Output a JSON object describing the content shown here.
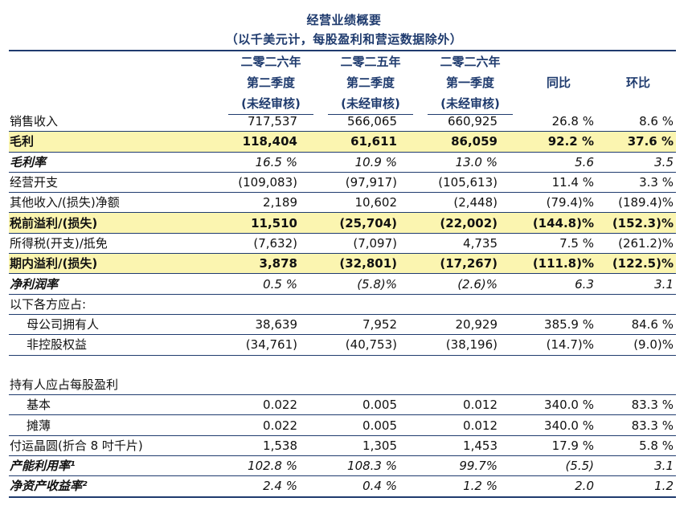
{
  "title": "经营业绩概要",
  "subtitle": "（以千美元计，每股盈利和营运数据除外）",
  "columns": [
    {
      "line1": "二零二六年",
      "line2": "第二季度",
      "line3": "(未经审核)"
    },
    {
      "line1": "二零二五年",
      "line2": "第二季度",
      "line3": "(未经审核)"
    },
    {
      "line1": "二零二六年",
      "line2": "第一季度",
      "line3": "(未经审核)"
    },
    {
      "label": "同比"
    },
    {
      "label": "环比"
    }
  ],
  "rows": [
    {
      "label": "销售收入",
      "values": [
        "717,537",
        "566,065",
        "660,925",
        "26.8 %",
        "8.6 %"
      ]
    },
    {
      "label": "毛利",
      "values": [
        "118,404",
        "61,611",
        "86,059",
        "92.2 %",
        "37.6 %"
      ]
    },
    {
      "label": "毛利率",
      "values": [
        "16.5 %",
        "10.9 %",
        "13.0 %",
        "5.6",
        "3.5"
      ]
    },
    {
      "label": "经营开支",
      "values": [
        "(109,083)",
        "(97,917)",
        "(105,613)",
        "11.4 %",
        "3.3 %"
      ]
    },
    {
      "label": "其他收入/(损失)净额",
      "values": [
        "2,189",
        "10,602",
        "(2,448)",
        "(79.4)%",
        "(189.4)%"
      ]
    },
    {
      "label": "税前溢利/(损失)",
      "values": [
        "11,510",
        "(25,704)",
        "(22,002)",
        "(144.8)%",
        "(152.3)%"
      ]
    },
    {
      "label": "所得税(开支)/抵免",
      "values": [
        "(7,632)",
        "(7,097)",
        "4,735",
        "7.5 %",
        "(261.2)%"
      ]
    },
    {
      "label": "期内溢利/(损失)",
      "values": [
        "3,878",
        "(32,801)",
        "(17,267)",
        "(111.8)%",
        "(122.5)%"
      ]
    },
    {
      "label": "净利润率",
      "values": [
        "0.5 %",
        "(5.8)%",
        "(2.6)%",
        "6.3",
        "3.1"
      ]
    },
    {
      "label": "以下各方应占:",
      "values": [
        "",
        "",
        "",
        "",
        ""
      ]
    },
    {
      "label": "母公司拥有人",
      "values": [
        "38,639",
        "7,952",
        "20,929",
        "385.9 %",
        "84.6 %"
      ]
    },
    {
      "label": "非控股权益",
      "values": [
        "(34,761)",
        "(40,753)",
        "(38,196)",
        "(14.7)%",
        "(9.0)%"
      ]
    },
    {
      "label": "",
      "values": [
        "",
        "",
        "",
        "",
        ""
      ]
    },
    {
      "label": "持有人应占每股盈利",
      "values": [
        "",
        "",
        "",
        "",
        ""
      ]
    },
    {
      "label": "基本",
      "values": [
        "0.022",
        "0.005",
        "0.012",
        "340.0 %",
        "83.3 %"
      ]
    },
    {
      "label": "摊薄",
      "values": [
        "0.022",
        "0.005",
        "0.012",
        "340.0 %",
        "83.3 %"
      ]
    },
    {
      "label": "付运晶圆(折合 8 吋千片)",
      "values": [
        "1,538",
        "1,305",
        "1,453",
        "17.9 %",
        "5.8 %"
      ]
    },
    {
      "label": "产能利用率¹",
      "values": [
        "102.8 %",
        "108.3 %",
        "99.7%",
        "(5.5)",
        "3.1"
      ]
    },
    {
      "label": "净资产收益率²",
      "values": [
        "2.4 %",
        "0.4 %",
        "1.2 %",
        "2.0",
        "1.2"
      ]
    }
  ]
}
